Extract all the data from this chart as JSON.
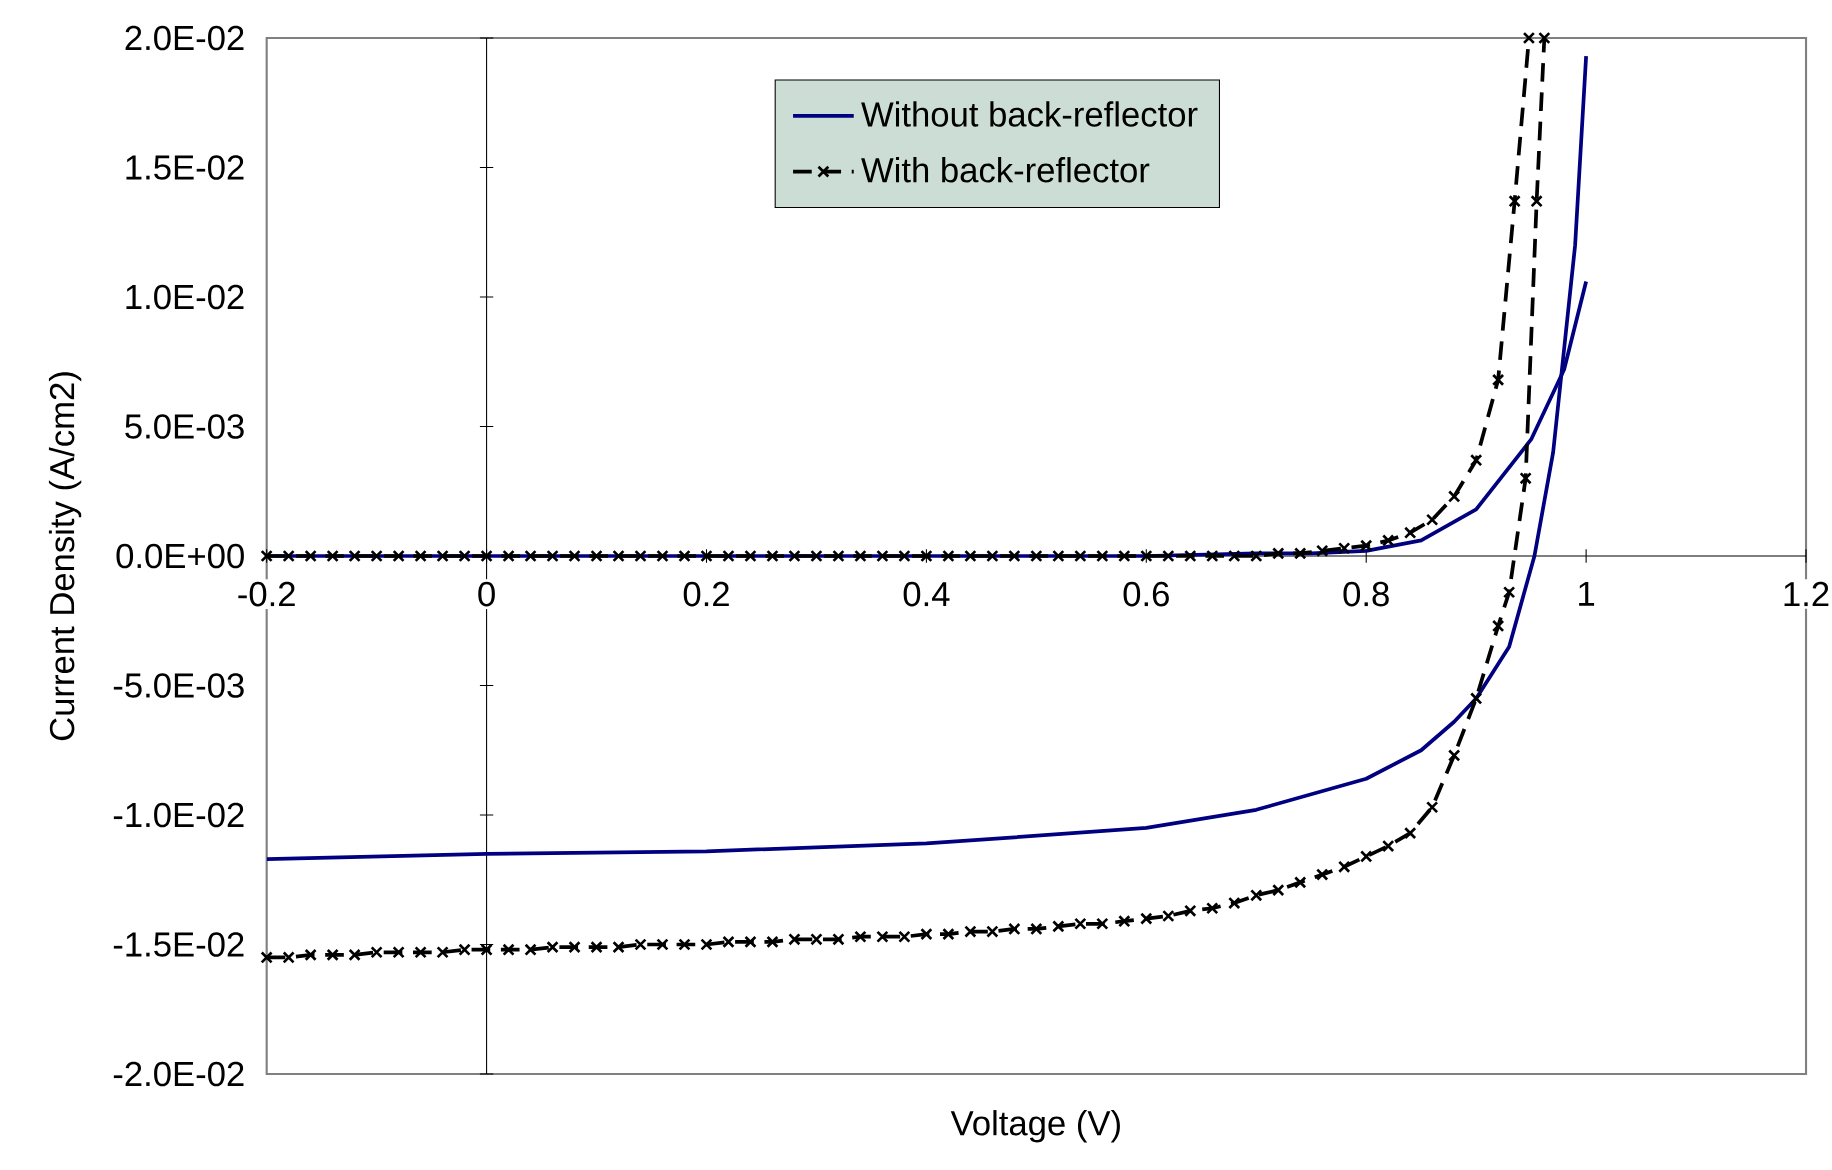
{
  "chart_data": {
    "type": "line",
    "xlabel": "Voltage (V)",
    "ylabel": "Current Density (A/cm2)",
    "xlim": [
      -0.2,
      1.2
    ],
    "ylim": [
      -0.02,
      0.02
    ],
    "xticks": [
      -0.2,
      0,
      0.2,
      0.4,
      0.6,
      0.8,
      1,
      1.2
    ],
    "yticks": [
      {
        "value": -0.02,
        "label": "-2.0E-02"
      },
      {
        "value": -0.015,
        "label": "-1.5E-02"
      },
      {
        "value": -0.01,
        "label": "-1.0E-02"
      },
      {
        "value": -0.005,
        "label": "-5.0E-03"
      },
      {
        "value": 0,
        "label": "0.0E+00"
      },
      {
        "value": 0.005,
        "label": "5.0E-03"
      },
      {
        "value": 0.01,
        "label": "1.0E-02"
      },
      {
        "value": 0.015,
        "label": "1.5E-02"
      },
      {
        "value": 0.02,
        "label": "2.0E-02"
      }
    ],
    "legend": "top",
    "series": [
      {
        "name": "Without back-reflector",
        "color": "#000080",
        "line_style": "solid",
        "marker": "none",
        "x": [
          -0.2,
          0,
          0.2,
          0.4,
          0.6,
          0.7,
          0.75,
          0.8,
          0.85,
          0.9,
          0.95,
          0.98,
          1.0
        ],
        "values": [
          0,
          0,
          0,
          0,
          0,
          0.0001,
          0.0001,
          0.0002,
          0.0006,
          0.0018,
          0.0045,
          0.0072,
          0.0106
        ]
      },
      {
        "name": "With back-reflector",
        "color": "#000000",
        "line_style": "dashed",
        "marker": "cross",
        "x": [
          -0.2,
          -0.18,
          -0.16,
          -0.14,
          -0.12,
          -0.1,
          -0.08,
          -0.06,
          -0.04,
          -0.02,
          0,
          0.02,
          0.04,
          0.06,
          0.08,
          0.1,
          0.12,
          0.14,
          0.16,
          0.18,
          0.2,
          0.22,
          0.24,
          0.26,
          0.28,
          0.3,
          0.32,
          0.34,
          0.36,
          0.38,
          0.4,
          0.42,
          0.44,
          0.46,
          0.48,
          0.5,
          0.52,
          0.54,
          0.56,
          0.58,
          0.6,
          0.62,
          0.64,
          0.66,
          0.68,
          0.7,
          0.72,
          0.74,
          0.76,
          0.78,
          0.8,
          0.82,
          0.84,
          0.86,
          0.88,
          0.9,
          0.92,
          0.935,
          0.948
        ],
        "values": [
          0,
          0,
          0,
          0,
          0,
          0,
          0,
          0,
          0,
          0,
          0,
          0,
          0,
          0,
          0,
          0,
          0,
          0,
          0,
          0,
          0,
          0,
          0,
          0,
          0,
          0,
          0,
          0,
          0,
          0,
          0,
          0,
          0,
          0,
          0,
          0,
          0,
          0,
          0,
          0,
          0,
          0,
          0,
          0,
          0,
          0,
          0.0001,
          0.0001,
          0.0002,
          0.0003,
          0.0004,
          0.0006,
          0.0009,
          0.0014,
          0.0023,
          0.0037,
          0.0068,
          0.0137,
          0.02
        ]
      },
      {
        "color": "#000080",
        "line_style": "solid",
        "marker": "none",
        "x": [
          -0.2,
          0,
          0.2,
          0.4,
          0.6,
          0.7,
          0.8,
          0.85,
          0.88,
          0.9,
          0.93,
          0.953,
          0.97,
          0.99,
          1.0
        ],
        "values": [
          -0.0117,
          -0.0115,
          -0.0114,
          -0.0111,
          -0.0105,
          -0.0098,
          -0.0086,
          -0.0075,
          -0.0064,
          -0.0055,
          -0.0035,
          0,
          0.004,
          0.012,
          0.0193
        ]
      },
      {
        "color": "#000000",
        "line_style": "dashed",
        "marker": "cross",
        "x": [
          -0.2,
          -0.18,
          -0.16,
          -0.14,
          -0.12,
          -0.1,
          -0.08,
          -0.06,
          -0.04,
          -0.02,
          0,
          0.02,
          0.04,
          0.06,
          0.08,
          0.1,
          0.12,
          0.14,
          0.16,
          0.18,
          0.2,
          0.22,
          0.24,
          0.26,
          0.28,
          0.3,
          0.32,
          0.34,
          0.36,
          0.38,
          0.4,
          0.42,
          0.44,
          0.46,
          0.48,
          0.5,
          0.52,
          0.54,
          0.56,
          0.58,
          0.6,
          0.62,
          0.64,
          0.66,
          0.68,
          0.7,
          0.72,
          0.74,
          0.76,
          0.78,
          0.8,
          0.82,
          0.84,
          0.86,
          0.88,
          0.9,
          0.92,
          0.93,
          0.945,
          0.955,
          0.962
        ],
        "values": [
          -0.0155,
          -0.0155,
          -0.0154,
          -0.0154,
          -0.0154,
          -0.0153,
          -0.0153,
          -0.0153,
          -0.0153,
          -0.0152,
          -0.0152,
          -0.0152,
          -0.0152,
          -0.0151,
          -0.0151,
          -0.0151,
          -0.0151,
          -0.015,
          -0.015,
          -0.015,
          -0.015,
          -0.0149,
          -0.0149,
          -0.0149,
          -0.0148,
          -0.0148,
          -0.0148,
          -0.0147,
          -0.0147,
          -0.0147,
          -0.0146,
          -0.0146,
          -0.0145,
          -0.0145,
          -0.0144,
          -0.0144,
          -0.0143,
          -0.0142,
          -0.0142,
          -0.0141,
          -0.014,
          -0.0139,
          -0.0137,
          -0.0136,
          -0.0134,
          -0.0131,
          -0.0129,
          -0.0126,
          -0.0123,
          -0.012,
          -0.0116,
          -0.0112,
          -0.0107,
          -0.0097,
          -0.0077,
          -0.0055,
          -0.0027,
          -0.0014,
          0.003,
          0.0137,
          0.02
        ]
      }
    ]
  }
}
